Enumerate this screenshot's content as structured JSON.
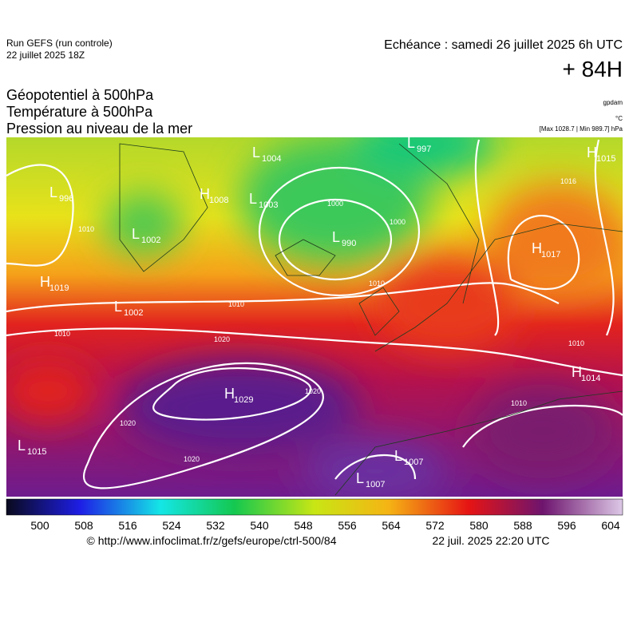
{
  "header": {
    "run": "Run GEFS (run controle)",
    "run_date": "22 juillet 2025 18Z",
    "valid": "Echéance : samedi 26 juillet 2025 6h UTC",
    "lead": "+ 84H",
    "titles": [
      "Géopotentiel à 500hPa",
      "Température à 500hPa",
      "Pression au niveau de la mer"
    ],
    "units": [
      "gpdam",
      "°C",
      "[Max 1028.7 | Min 989.7] hPa"
    ]
  },
  "centers": [
    {
      "letter": "H",
      "value": 1015
    },
    {
      "letter": "L",
      "value": 997
    },
    {
      "letter": "L",
      "value": 1004
    },
    {
      "letter": "L",
      "value": 996
    },
    {
      "letter": "H",
      "value": 1008
    },
    {
      "letter": "L",
      "value": 1003
    },
    {
      "letter": "L",
      "value": 1002
    },
    {
      "letter": "L",
      "value": 990
    },
    {
      "letter": "H",
      "value": 1017
    },
    {
      "letter": "H",
      "value": 1019
    },
    {
      "letter": "L",
      "value": 1002
    },
    {
      "letter": "H",
      "value": 1029
    },
    {
      "letter": "L",
      "value": 1015
    },
    {
      "letter": "H",
      "value": 1014
    },
    {
      "letter": "L",
      "value": 1007
    },
    {
      "letter": "L",
      "value": 1007
    }
  ],
  "isobar_labels": [
    1010,
    1010,
    1010,
    1020,
    1020,
    1020,
    1020,
    1000,
    1000,
    1010,
    1010,
    1010,
    1016
  ],
  "colorbar": {
    "ticks": [
      500,
      508,
      516,
      524,
      532,
      540,
      548,
      556,
      564,
      572,
      580,
      588,
      596,
      604
    ]
  },
  "footer": {
    "source": "© http://www.infoclimat.fr/z/gefs/europe/ctrl-500/84",
    "generated": "22 juil. 2025 22:20 UTC"
  }
}
